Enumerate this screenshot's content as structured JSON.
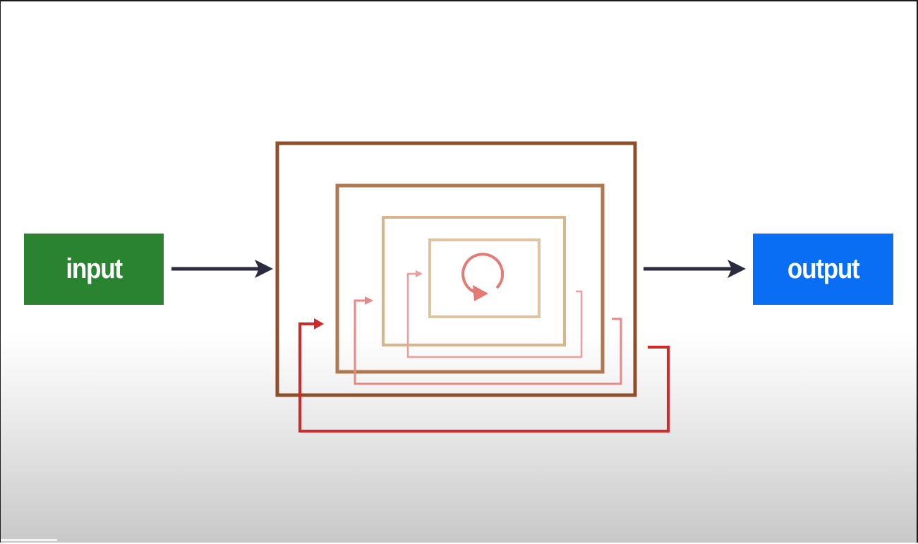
{
  "nodes": {
    "input": {
      "label": "input",
      "color": "#2a8331"
    },
    "output": {
      "label": "output",
      "color": "#0a6ef5"
    }
  },
  "colors": {
    "arrow": "#2b2b3f",
    "box_outer": "#8d4e2a",
    "box_second": "#b07850",
    "box_third": "#d8b58d",
    "box_inner": "#dfc4a2",
    "loop_outer": "#cf2a27",
    "loop_second": "#e58a86",
    "loop_third": "#ee9e9a",
    "loop_inner_icon": "#e47a74"
  },
  "icons": {
    "recursion_center": "circular-arrow-icon"
  }
}
